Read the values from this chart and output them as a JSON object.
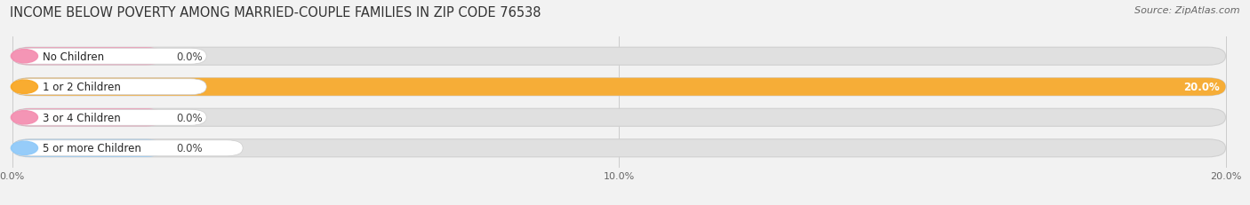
{
  "title": "INCOME BELOW POVERTY AMONG MARRIED-COUPLE FAMILIES IN ZIP CODE 76538",
  "source": "Source: ZipAtlas.com",
  "categories": [
    "No Children",
    "1 or 2 Children",
    "3 or 4 Children",
    "5 or more Children"
  ],
  "values": [
    0.0,
    20.0,
    0.0,
    0.0
  ],
  "bar_colors": [
    "#f48fb1",
    "#f9a825",
    "#f48fb1",
    "#90caf9"
  ],
  "xlim_max": 20.0,
  "xticks": [
    0.0,
    10.0,
    20.0
  ],
  "xtick_labels": [
    "0.0%",
    "10.0%",
    "20.0%"
  ],
  "background_color": "#f2f2f2",
  "bar_bg_color": "#e0e0e0",
  "title_fontsize": 10.5,
  "source_fontsize": 8,
  "label_fontsize": 8.5,
  "value_fontsize_inside": 8.5,
  "value_fontsize_outside": 8.5,
  "stub_min": 2.5
}
